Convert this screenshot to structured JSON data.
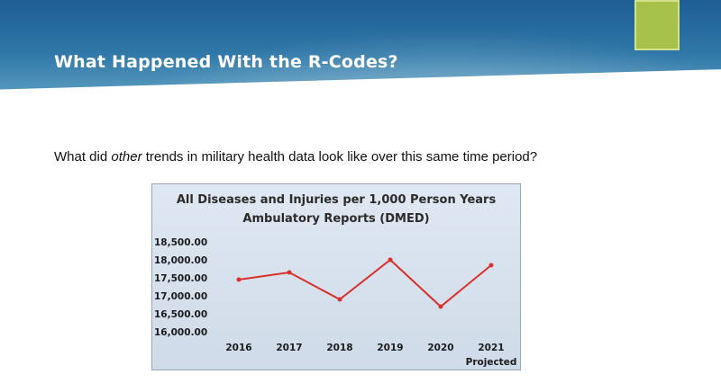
{
  "slide": {
    "title": "What Happened With the R-Codes?",
    "question_pre": "What did ",
    "question_em": "other",
    "question_post": " trends in military health data look like over this same time period?"
  },
  "colors": {
    "banner": "#2f78a8",
    "accent": "#a6c24a",
    "line": "#d9302c",
    "chart_bg": "#d8e3ee"
  },
  "chart_data": {
    "type": "line",
    "title": "All Diseases and Injuries per 1,000 Person Years",
    "subtitle": "Ambulatory Reports (DMED)",
    "categories": [
      "2016",
      "2017",
      "2018",
      "2019",
      "2020",
      "2021"
    ],
    "category_notes": [
      "",
      "",
      "",
      "",
      "",
      "Projected"
    ],
    "series": [
      {
        "values": [
          17450,
          17650,
          16900,
          18000,
          16700,
          17850
        ]
      }
    ],
    "y_ticks": [
      "18,500.00",
      "18,000.00",
      "17,500.00",
      "17,000.00",
      "16,500.00",
      "16,000.00"
    ],
    "ylim": [
      16000,
      18500
    ],
    "xlabel": "",
    "ylabel": "",
    "grid": false,
    "legend": "none"
  }
}
